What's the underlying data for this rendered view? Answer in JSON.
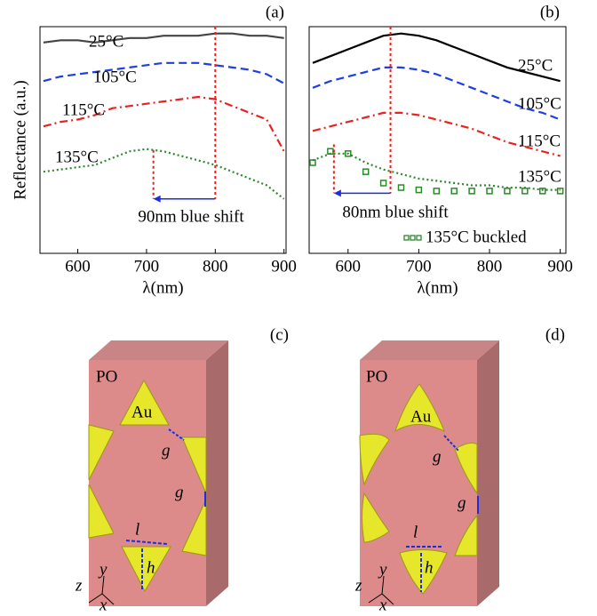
{
  "chart_data": [
    {
      "type": "line",
      "panel": "(a)",
      "xlabel": "λ(nm)",
      "ylabel": "Reflectance (a.u.)",
      "x": [
        550,
        575,
        600,
        625,
        650,
        675,
        700,
        725,
        750,
        775,
        800,
        825,
        850,
        875,
        900
      ],
      "xlim": [
        545,
        903
      ],
      "xticks": [
        600,
        700,
        800,
        900
      ],
      "ylim": [
        0,
        10
      ],
      "series": [
        {
          "name": "25°C",
          "color": "#444444",
          "style": "solid",
          "values": [
            9.3,
            9.4,
            9.4,
            9.3,
            9.4,
            9.5,
            9.5,
            9.6,
            9.6,
            9.6,
            9.7,
            9.7,
            9.6,
            9.6,
            9.5
          ]
        },
        {
          "name": "105°C",
          "color": "#1f3fdf",
          "style": "dash",
          "values": [
            7.6,
            7.8,
            7.9,
            8.0,
            8.1,
            8.2,
            8.3,
            8.4,
            8.4,
            8.4,
            8.3,
            8.2,
            8.1,
            7.9,
            7.5
          ]
        },
        {
          "name": "115°C",
          "color": "#e8231f",
          "style": "dashdot",
          "values": [
            5.6,
            5.8,
            5.9,
            6.1,
            6.4,
            6.5,
            6.6,
            6.7,
            6.8,
            6.9,
            6.8,
            6.5,
            6.2,
            5.9,
            4.5
          ]
        },
        {
          "name": "135°C",
          "color": "#2a8a2a",
          "style": "dot",
          "values": [
            3.6,
            3.7,
            3.8,
            3.9,
            4.2,
            4.5,
            4.6,
            4.5,
            4.3,
            4.1,
            3.9,
            3.6,
            3.3,
            3.0,
            2.4
          ]
        }
      ],
      "shift": {
        "from": 800,
        "to": 710,
        "level": 2.4,
        "label": "90nm blue shift"
      }
    },
    {
      "type": "line",
      "panel": "(b)",
      "xlabel": "λ(nm)",
      "x": [
        550,
        575,
        600,
        625,
        650,
        675,
        700,
        725,
        750,
        775,
        800,
        825,
        850,
        875,
        900
      ],
      "xlim": [
        545,
        908
      ],
      "xticks": [
        600,
        700,
        800,
        900
      ],
      "ylim": [
        0,
        10
      ],
      "series": [
        {
          "name": "25°C",
          "color": "#000000",
          "style": "solid",
          "values": [
            8.4,
            8.7,
            9.0,
            9.3,
            9.6,
            9.7,
            9.6,
            9.4,
            9.1,
            8.8,
            8.5,
            8.2,
            8.0,
            7.8,
            7.6
          ]
        },
        {
          "name": "105°C",
          "color": "#1f3fdf",
          "style": "dash",
          "values": [
            7.3,
            7.6,
            7.8,
            8.0,
            8.2,
            8.2,
            8.1,
            7.9,
            7.6,
            7.3,
            7.0,
            6.7,
            6.4,
            6.2,
            5.9
          ]
        },
        {
          "name": "115°C",
          "color": "#e8231f",
          "style": "dashdot",
          "values": [
            5.4,
            5.6,
            5.8,
            6.0,
            6.2,
            6.2,
            6.1,
            5.9,
            5.7,
            5.5,
            5.2,
            4.9,
            4.7,
            4.5,
            4.3
          ]
        },
        {
          "name": "135°C",
          "color": "#2a8a2a",
          "style": "dot",
          "values": [
            4.1,
            4.4,
            4.4,
            4.0,
            3.7,
            3.5,
            3.3,
            3.2,
            3.1,
            3.0,
            3.0,
            2.9,
            2.9,
            2.8,
            2.8
          ]
        },
        {
          "name": "135°C buckled",
          "color": "#2a8a2a",
          "style": "squares",
          "values": [
            4.0,
            4.5,
            4.4,
            3.6,
            3.1,
            2.9,
            2.8,
            2.75,
            2.75,
            2.75,
            2.75,
            2.75,
            2.75,
            2.75,
            2.75
          ]
        }
      ],
      "shift": {
        "from": 660,
        "to": 580,
        "level": 2.65,
        "label": "80nm blue shift"
      }
    }
  ],
  "diagrams": [
    {
      "panel": "(c)",
      "matrix": "PO",
      "particle": "Au",
      "gap1": "g",
      "gap2": "g",
      "length": "l",
      "height": "h",
      "axis_z": "z",
      "axis_y": "y",
      "axis_x": "x"
    },
    {
      "panel": "(d)",
      "matrix": "PO",
      "particle": "Au",
      "gap1": "g",
      "gap2": "g",
      "length": "l",
      "height": "h",
      "axis_z": "z",
      "axis_y": "y",
      "axis_x": "x"
    }
  ]
}
